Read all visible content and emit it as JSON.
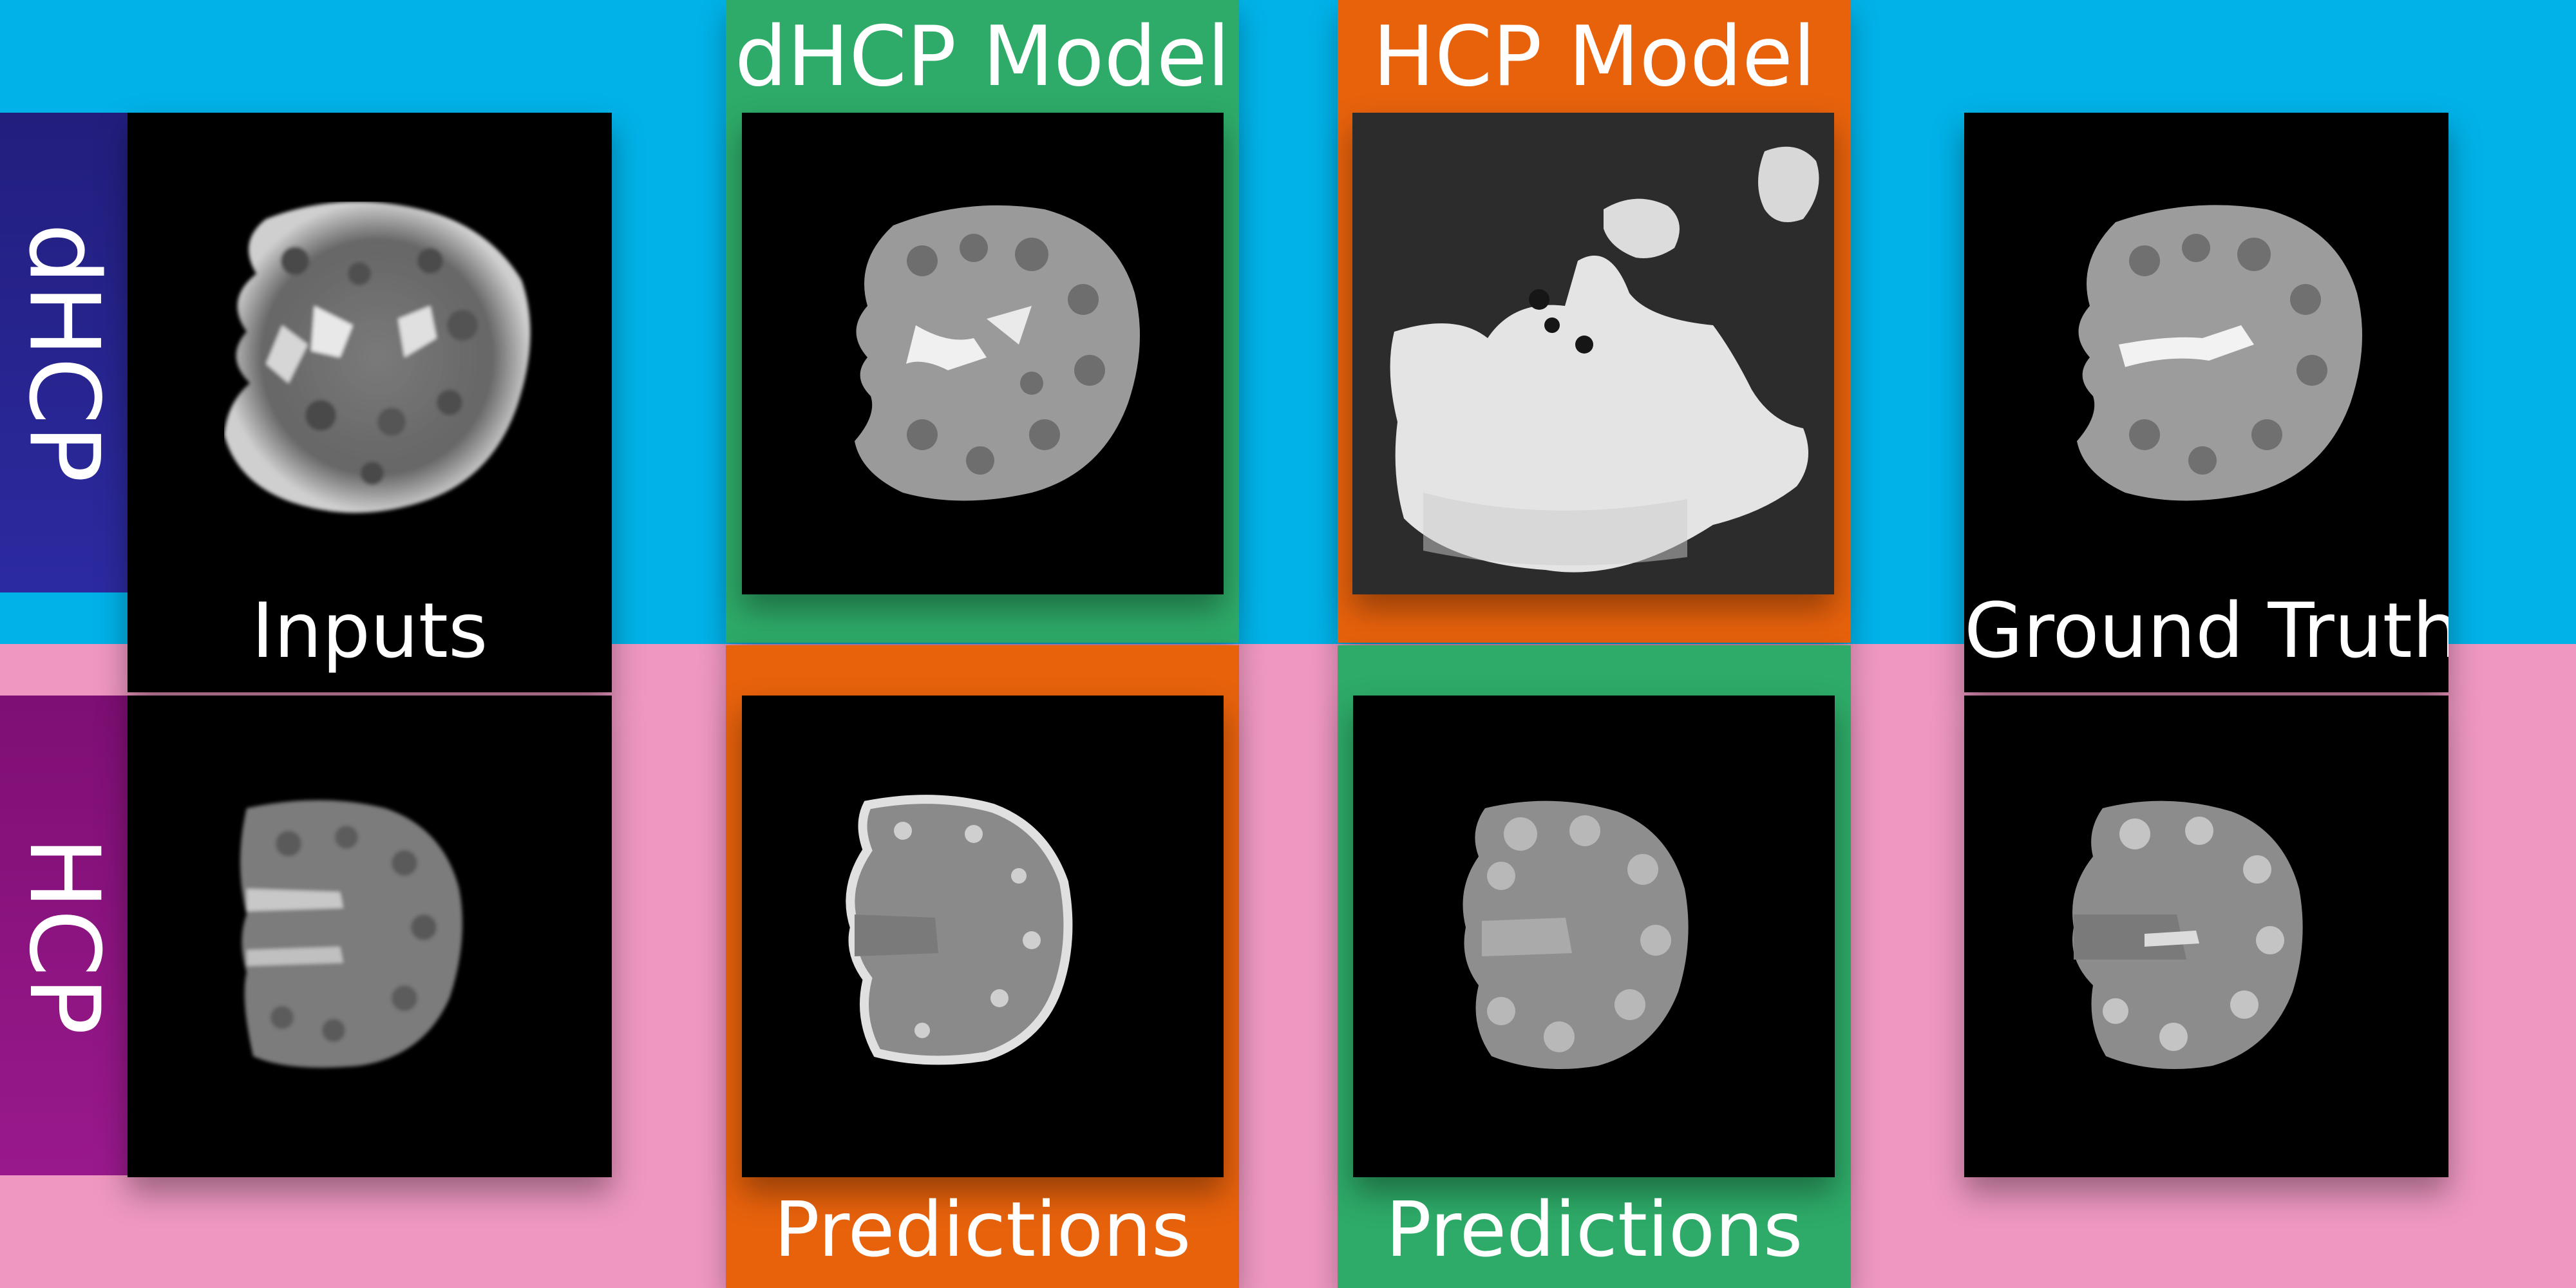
{
  "columns": {
    "dhcp_model": "dHCP Model",
    "hcp_model": "HCP Model"
  },
  "rows": {
    "dhcp": "dHCP",
    "hcp": "HCP"
  },
  "labels": {
    "inputs": "Inputs",
    "ground_truth": "Ground Truth",
    "predictions_left": "Predictions",
    "predictions_right": "Predictions"
  },
  "colors": {
    "top_background": "#00B2E8",
    "bottom_background": "#EE97C0",
    "dhcp_row_label": "#2A2396",
    "hcp_row_label": "#8E1480",
    "model_green": "#2EAB68",
    "model_orange": "#E8620C"
  }
}
